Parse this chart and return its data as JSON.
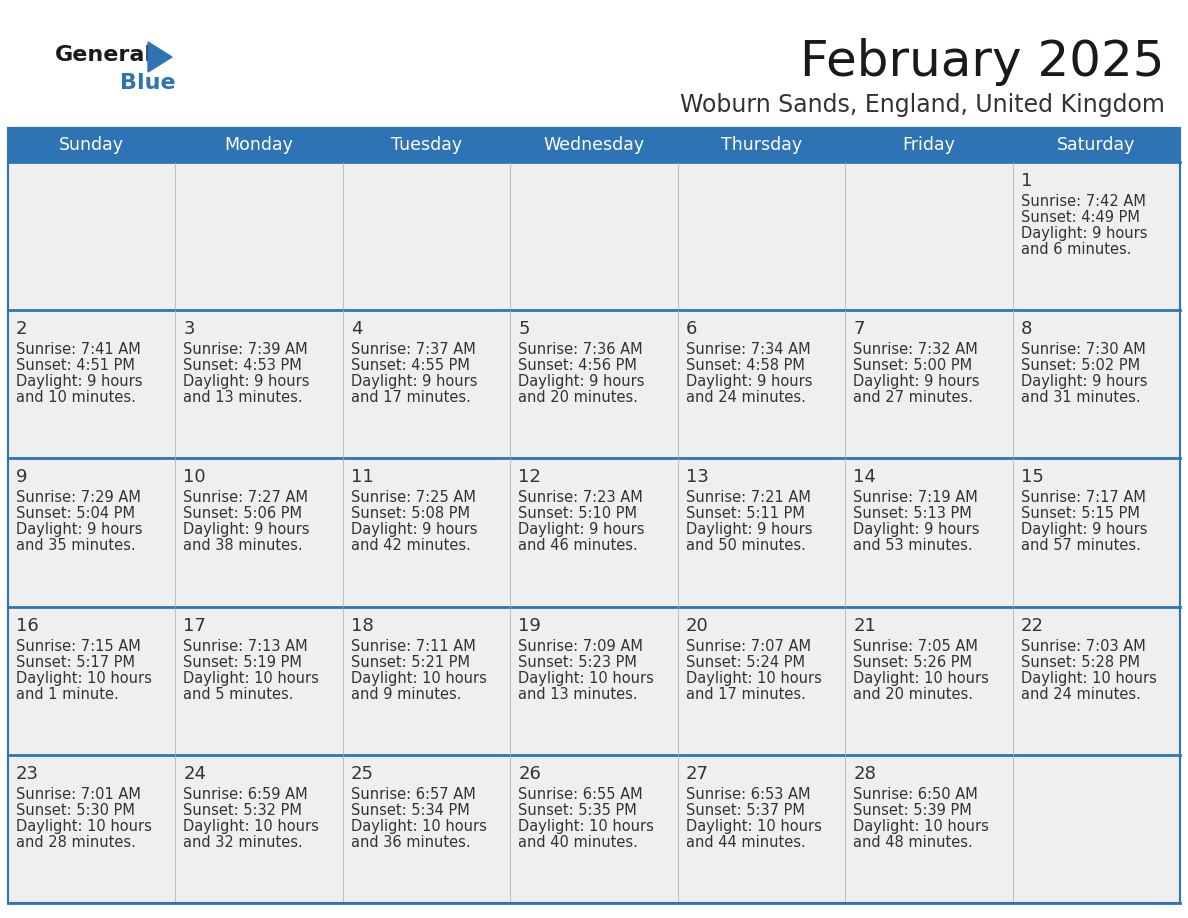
{
  "title": "February 2025",
  "subtitle": "Woburn Sands, England, United Kingdom",
  "header_bg": "#2E74B5",
  "header_text_color": "#FFFFFF",
  "cell_bg": "#EFEFEF",
  "border_color": "#2E74B5",
  "row_divider_color": "#2E74B5",
  "day_headers": [
    "Sunday",
    "Monday",
    "Tuesday",
    "Wednesday",
    "Thursday",
    "Friday",
    "Saturday"
  ],
  "title_color": "#1a1a1a",
  "subtitle_color": "#333333",
  "day_number_color": "#333333",
  "cell_text_color": "#333333",
  "logo_general_color": "#1a1a1a",
  "logo_blue_color": "#2E74B5",
  "days": [
    {
      "day": 1,
      "col": 6,
      "row": 0,
      "sunrise": "7:42 AM",
      "sunset": "4:49 PM",
      "daylight": "9 hours and 6 minutes."
    },
    {
      "day": 2,
      "col": 0,
      "row": 1,
      "sunrise": "7:41 AM",
      "sunset": "4:51 PM",
      "daylight": "9 hours and 10 minutes."
    },
    {
      "day": 3,
      "col": 1,
      "row": 1,
      "sunrise": "7:39 AM",
      "sunset": "4:53 PM",
      "daylight": "9 hours and 13 minutes."
    },
    {
      "day": 4,
      "col": 2,
      "row": 1,
      "sunrise": "7:37 AM",
      "sunset": "4:55 PM",
      "daylight": "9 hours and 17 minutes."
    },
    {
      "day": 5,
      "col": 3,
      "row": 1,
      "sunrise": "7:36 AM",
      "sunset": "4:56 PM",
      "daylight": "9 hours and 20 minutes."
    },
    {
      "day": 6,
      "col": 4,
      "row": 1,
      "sunrise": "7:34 AM",
      "sunset": "4:58 PM",
      "daylight": "9 hours and 24 minutes."
    },
    {
      "day": 7,
      "col": 5,
      "row": 1,
      "sunrise": "7:32 AM",
      "sunset": "5:00 PM",
      "daylight": "9 hours and 27 minutes."
    },
    {
      "day": 8,
      "col": 6,
      "row": 1,
      "sunrise": "7:30 AM",
      "sunset": "5:02 PM",
      "daylight": "9 hours and 31 minutes."
    },
    {
      "day": 9,
      "col": 0,
      "row": 2,
      "sunrise": "7:29 AM",
      "sunset": "5:04 PM",
      "daylight": "9 hours and 35 minutes."
    },
    {
      "day": 10,
      "col": 1,
      "row": 2,
      "sunrise": "7:27 AM",
      "sunset": "5:06 PM",
      "daylight": "9 hours and 38 minutes."
    },
    {
      "day": 11,
      "col": 2,
      "row": 2,
      "sunrise": "7:25 AM",
      "sunset": "5:08 PM",
      "daylight": "9 hours and 42 minutes."
    },
    {
      "day": 12,
      "col": 3,
      "row": 2,
      "sunrise": "7:23 AM",
      "sunset": "5:10 PM",
      "daylight": "9 hours and 46 minutes."
    },
    {
      "day": 13,
      "col": 4,
      "row": 2,
      "sunrise": "7:21 AM",
      "sunset": "5:11 PM",
      "daylight": "9 hours and 50 minutes."
    },
    {
      "day": 14,
      "col": 5,
      "row": 2,
      "sunrise": "7:19 AM",
      "sunset": "5:13 PM",
      "daylight": "9 hours and 53 minutes."
    },
    {
      "day": 15,
      "col": 6,
      "row": 2,
      "sunrise": "7:17 AM",
      "sunset": "5:15 PM",
      "daylight": "9 hours and 57 minutes."
    },
    {
      "day": 16,
      "col": 0,
      "row": 3,
      "sunrise": "7:15 AM",
      "sunset": "5:17 PM",
      "daylight": "10 hours and 1 minute."
    },
    {
      "day": 17,
      "col": 1,
      "row": 3,
      "sunrise": "7:13 AM",
      "sunset": "5:19 PM",
      "daylight": "10 hours and 5 minutes."
    },
    {
      "day": 18,
      "col": 2,
      "row": 3,
      "sunrise": "7:11 AM",
      "sunset": "5:21 PM",
      "daylight": "10 hours and 9 minutes."
    },
    {
      "day": 19,
      "col": 3,
      "row": 3,
      "sunrise": "7:09 AM",
      "sunset": "5:23 PM",
      "daylight": "10 hours and 13 minutes."
    },
    {
      "day": 20,
      "col": 4,
      "row": 3,
      "sunrise": "7:07 AM",
      "sunset": "5:24 PM",
      "daylight": "10 hours and 17 minutes."
    },
    {
      "day": 21,
      "col": 5,
      "row": 3,
      "sunrise": "7:05 AM",
      "sunset": "5:26 PM",
      "daylight": "10 hours and 20 minutes."
    },
    {
      "day": 22,
      "col": 6,
      "row": 3,
      "sunrise": "7:03 AM",
      "sunset": "5:28 PM",
      "daylight": "10 hours and 24 minutes."
    },
    {
      "day": 23,
      "col": 0,
      "row": 4,
      "sunrise": "7:01 AM",
      "sunset": "5:30 PM",
      "daylight": "10 hours and 28 minutes."
    },
    {
      "day": 24,
      "col": 1,
      "row": 4,
      "sunrise": "6:59 AM",
      "sunset": "5:32 PM",
      "daylight": "10 hours and 32 minutes."
    },
    {
      "day": 25,
      "col": 2,
      "row": 4,
      "sunrise": "6:57 AM",
      "sunset": "5:34 PM",
      "daylight": "10 hours and 36 minutes."
    },
    {
      "day": 26,
      "col": 3,
      "row": 4,
      "sunrise": "6:55 AM",
      "sunset": "5:35 PM",
      "daylight": "10 hours and 40 minutes."
    },
    {
      "day": 27,
      "col": 4,
      "row": 4,
      "sunrise": "6:53 AM",
      "sunset": "5:37 PM",
      "daylight": "10 hours and 44 minutes."
    },
    {
      "day": 28,
      "col": 5,
      "row": 4,
      "sunrise": "6:50 AM",
      "sunset": "5:39 PM",
      "daylight": "10 hours and 48 minutes."
    }
  ]
}
